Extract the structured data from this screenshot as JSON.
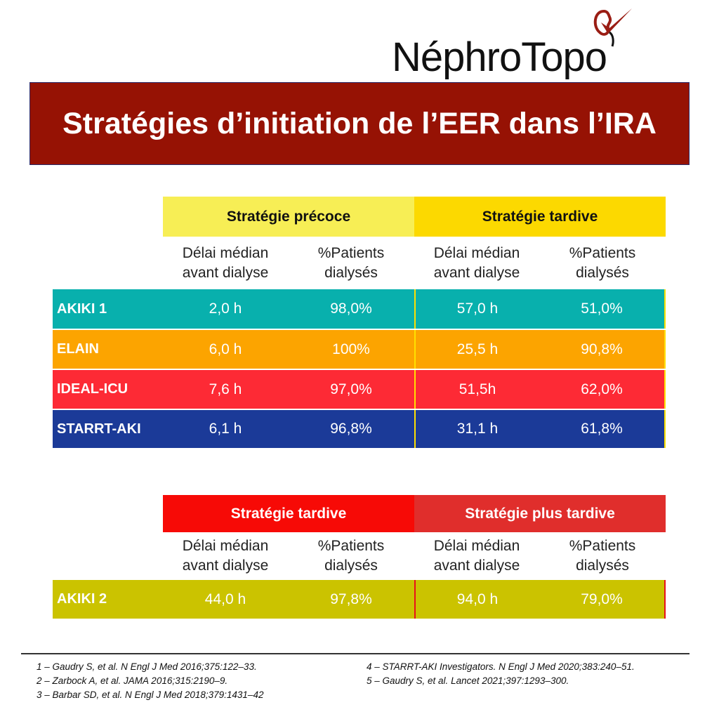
{
  "logo": {
    "text": "NéphroTopo",
    "icon": "kidney-checkmark-icon",
    "color": "#9a1d14"
  },
  "title": "Stratégies d’initiation de l’EER dans l’IRA",
  "colors": {
    "title_bg": "#961204",
    "early": "#f7ee55",
    "late": "#fcd900",
    "late2": "#f70a06",
    "later": "#e02e2c"
  },
  "table1": {
    "groups": [
      "Stratégie précoce",
      "Stratégie tardive"
    ],
    "subheaders": [
      "Délai médian\navant dialyse",
      "%Patients\ndialysés",
      "Délai médian\navant dialyse",
      "%Patients\ndialysés"
    ],
    "rows": [
      {
        "name": "AKIKI 1",
        "color": "#08b0ad",
        "values": [
          "2,0 h",
          "98,0%",
          "57,0 h",
          "51,0%"
        ]
      },
      {
        "name": "ELAIN",
        "color": "#fca400",
        "values": [
          "6,0 h",
          "100%",
          "25,5 h",
          "90,8%"
        ]
      },
      {
        "name": "IDEAL-ICU",
        "color": "#fd2a35",
        "values": [
          "7,6 h",
          "97,0%",
          "51,5h",
          "62,0%"
        ]
      },
      {
        "name": "STARRT-AKI",
        "color": "#1b3a98",
        "values": [
          "6,1 h",
          "96,8%",
          "31,1 h",
          "61,8%"
        ]
      }
    ]
  },
  "table2": {
    "groups": [
      "Stratégie tardive",
      "Stratégie plus tardive"
    ],
    "subheaders": [
      "Délai médian\navant dialyse",
      "%Patients\ndialysés",
      "Délai médian\navant dialyse",
      "%Patients\ndialysés"
    ],
    "rows": [
      {
        "name": "AKIKI 2",
        "color": "#cbc300",
        "values": [
          "44,0 h",
          "97,8%",
          "94,0 h",
          "79,0%"
        ]
      }
    ]
  },
  "references": [
    "1 – Gaudry S, et al. N Engl J Med 2016;375:122–33.",
    "2 – Zarbock A, et al. JAMA 2016;315:2190–9.",
    "3 – Barbar SD, et al. N Engl J Med 2018;379:1431–42",
    "4 – STARRT-AKI Investigators. N Engl J Med 2020;383:240–51.",
    "5 – Gaudry S, et al. Lancet 2021;397:1293–300."
  ]
}
